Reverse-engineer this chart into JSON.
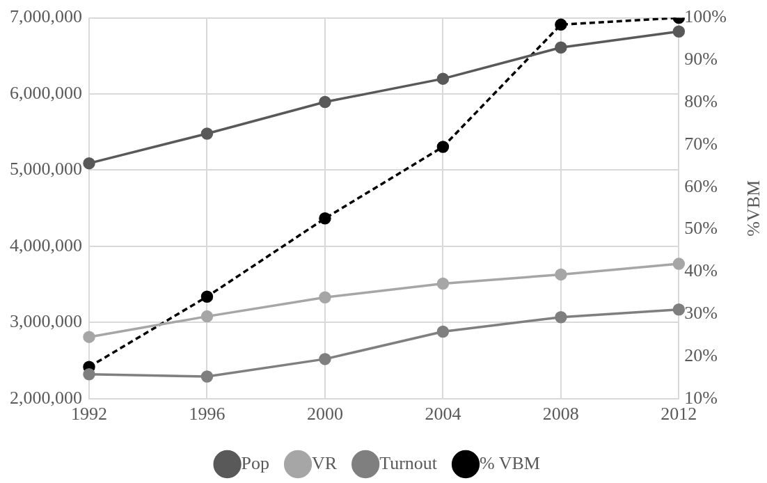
{
  "chart_data": {
    "type": "line",
    "y2label": "%VBM",
    "categories": [
      "1992",
      "1996",
      "2000",
      "2004",
      "2008",
      "2012"
    ],
    "series": [
      {
        "name": "Pop",
        "color": "#595959",
        "values": [
          5090000,
          5480000,
          5895000,
          6200000,
          6610000,
          6820000
        ]
      },
      {
        "name": "VR",
        "color": "#a6a6a6",
        "values": [
          2810000,
          3080000,
          3330000,
          3510000,
          3630000,
          3770000
        ]
      },
      {
        "name": "Turnout",
        "color": "#7f7f7f",
        "values": [
          2320000,
          2290000,
          2520000,
          2880000,
          3070000,
          3170000
        ]
      },
      {
        "name": "% VBM",
        "color": "#000000",
        "axis": "y2",
        "line_style": "dashed",
        "values": [
          17.5,
          34.1,
          52.6,
          69.5,
          98.4,
          100
        ]
      }
    ],
    "ylim": [
      2000000,
      7000000
    ],
    "yticks": [
      {
        "value": 2000000,
        "label": "2,000,000"
      },
      {
        "value": 3000000,
        "label": "3,000,000"
      },
      {
        "value": 4000000,
        "label": "4,000,000"
      },
      {
        "value": 5000000,
        "label": "5,000,000"
      },
      {
        "value": 6000000,
        "label": "6,000,000"
      },
      {
        "value": 7000000,
        "label": "7,000,000"
      }
    ],
    "y2lim": [
      10,
      100
    ],
    "y2ticks": [
      {
        "value": 10,
        "label": "10%"
      },
      {
        "value": 20,
        "label": "20%"
      },
      {
        "value": 30,
        "label": "30%"
      },
      {
        "value": 40,
        "label": "40%"
      },
      {
        "value": 50,
        "label": "50%"
      },
      {
        "value": 60,
        "label": "60%"
      },
      {
        "value": 70,
        "label": "70%"
      },
      {
        "value": 80,
        "label": "80%"
      },
      {
        "value": 90,
        "label": "90%"
      },
      {
        "value": 100,
        "label": "100%"
      }
    ],
    "grid": true,
    "legend": "bottom",
    "marker": "circle",
    "line_style": "solid"
  }
}
